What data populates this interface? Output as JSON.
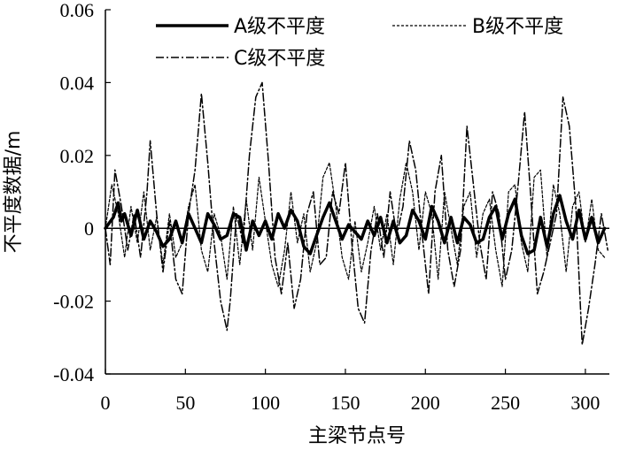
{
  "chart_data": {
    "type": "line",
    "title": "",
    "xlabel": "主梁节点号",
    "ylabel": "不平度数据/m",
    "xlim": [
      0,
      315
    ],
    "ylim": [
      -0.04,
      0.06
    ],
    "xticks": [
      0,
      50,
      100,
      150,
      200,
      250,
      300
    ],
    "yticks": [
      {
        "value": -0.04,
        "label": "-0.04"
      },
      {
        "value": -0.02,
        "label": "-0.02"
      },
      {
        "value": 0,
        "label": "0"
      },
      {
        "value": 0.02,
        "label": "0.02"
      },
      {
        "value": 0.04,
        "label": "0.04"
      },
      {
        "value": 0.06,
        "label": "0.06"
      }
    ],
    "grid": false,
    "legend_position": "top",
    "series": [
      {
        "name": "A级不平度",
        "style": "solid-thick",
        "x": [
          0,
          5,
          8,
          10,
          12,
          16,
          20,
          24,
          28,
          32,
          36,
          40,
          44,
          48,
          52,
          56,
          60,
          64,
          68,
          72,
          76,
          80,
          84,
          88,
          92,
          96,
          100,
          104,
          108,
          112,
          116,
          120,
          124,
          128,
          132,
          136,
          140,
          144,
          148,
          152,
          156,
          160,
          164,
          168,
          172,
          176,
          180,
          184,
          188,
          192,
          196,
          200,
          204,
          208,
          212,
          216,
          220,
          224,
          228,
          232,
          236,
          240,
          244,
          248,
          252,
          256,
          260,
          264,
          268,
          272,
          276,
          280,
          284,
          288,
          292,
          296,
          300,
          304,
          308,
          312
        ],
        "values": [
          0.0,
          0.003,
          0.007,
          0.002,
          0.004,
          -0.002,
          0.005,
          -0.003,
          0.002,
          -0.001,
          -0.005,
          -0.003,
          0.002,
          -0.004,
          0.004,
          0.0,
          -0.004,
          0.004,
          0.001,
          -0.003,
          -0.002,
          0.004,
          0.003,
          -0.006,
          0.002,
          -0.002,
          0.002,
          -0.003,
          0.004,
          0.0,
          0.005,
          0.002,
          -0.005,
          -0.007,
          -0.002,
          0.003,
          0.007,
          0.002,
          -0.003,
          0.001,
          -0.001,
          -0.003,
          0.002,
          -0.002,
          0.003,
          -0.004,
          0.002,
          -0.004,
          -0.002,
          0.005,
          0.002,
          -0.003,
          0.006,
          0.002,
          -0.004,
          0.003,
          -0.004,
          0.003,
          0.001,
          -0.004,
          -0.003,
          0.003,
          0.006,
          -0.003,
          0.004,
          0.008,
          -0.002,
          -0.007,
          -0.006,
          0.003,
          -0.005,
          0.004,
          0.009,
          0.002,
          -0.003,
          0.005,
          -0.003,
          0.003,
          -0.004,
          0.0
        ]
      },
      {
        "name": "B级不平度",
        "style": "dashed",
        "x": [
          0,
          4,
          8,
          12,
          16,
          20,
          24,
          28,
          32,
          36,
          40,
          44,
          48,
          52,
          56,
          60,
          64,
          68,
          72,
          76,
          80,
          84,
          88,
          92,
          96,
          100,
          104,
          108,
          112,
          116,
          120,
          124,
          128,
          132,
          136,
          140,
          144,
          148,
          152,
          156,
          160,
          164,
          168,
          172,
          176,
          180,
          184,
          188,
          192,
          196,
          200,
          204,
          208,
          212,
          216,
          220,
          224,
          228,
          232,
          236,
          240,
          244,
          248,
          252,
          256,
          260,
          264,
          268,
          272,
          276,
          280,
          284,
          288,
          292,
          296,
          300,
          304,
          308,
          312
        ],
        "values": [
          0.0,
          0.012,
          0.004,
          -0.008,
          0.006,
          -0.004,
          0.01,
          -0.006,
          0.003,
          -0.01,
          0.004,
          -0.008,
          -0.004,
          0.006,
          0.012,
          -0.006,
          -0.012,
          0.004,
          -0.002,
          -0.014,
          0.006,
          -0.01,
          0.008,
          -0.006,
          0.014,
          0.002,
          -0.01,
          -0.016,
          -0.006,
          0.01,
          -0.004,
          0.004,
          -0.012,
          -0.004,
          0.014,
          0.018,
          0.006,
          -0.008,
          -0.014,
          0.002,
          -0.012,
          -0.004,
          0.006,
          -0.006,
          0.004,
          -0.01,
          0.008,
          0.018,
          0.01,
          -0.006,
          0.01,
          0.004,
          -0.014,
          0.01,
          0.0,
          -0.01,
          0.006,
          0.01,
          -0.008,
          0.004,
          0.008,
          -0.006,
          -0.016,
          0.01,
          0.012,
          -0.004,
          -0.012,
          0.014,
          0.016,
          -0.008,
          0.012,
          0.004,
          -0.012,
          0.006,
          0.01,
          -0.004,
          0.008,
          -0.006,
          -0.008
        ]
      },
      {
        "name": "C级不平度",
        "style": "dash-dot",
        "x": [
          0,
          3,
          6,
          10,
          14,
          18,
          22,
          26,
          28,
          32,
          36,
          40,
          44,
          48,
          52,
          56,
          60,
          64,
          68,
          72,
          76,
          78,
          82,
          86,
          90,
          94,
          98,
          102,
          106,
          110,
          114,
          118,
          122,
          126,
          130,
          134,
          138,
          142,
          146,
          150,
          154,
          158,
          162,
          166,
          170,
          174,
          178,
          182,
          186,
          190,
          194,
          198,
          202,
          206,
          210,
          214,
          218,
          222,
          226,
          230,
          234,
          238,
          242,
          246,
          250,
          254,
          258,
          262,
          266,
          270,
          274,
          278,
          282,
          286,
          290,
          294,
          298,
          302,
          306,
          310,
          314
        ],
        "values": [
          0.0,
          -0.01,
          0.016,
          0.006,
          -0.006,
          0.004,
          -0.008,
          0.01,
          0.024,
          0.004,
          -0.012,
          0.002,
          -0.014,
          -0.018,
          0.004,
          0.016,
          0.037,
          0.018,
          -0.004,
          -0.02,
          -0.028,
          -0.02,
          0.004,
          -0.004,
          0.02,
          0.036,
          0.04,
          0.018,
          -0.008,
          -0.018,
          -0.004,
          -0.022,
          -0.014,
          0.004,
          0.01,
          -0.01,
          -0.008,
          0.01,
          0.004,
          0.018,
          -0.004,
          -0.022,
          -0.026,
          -0.006,
          0.004,
          -0.008,
          0.01,
          -0.002,
          0.006,
          0.024,
          0.016,
          -0.002,
          -0.018,
          0.01,
          0.02,
          -0.006,
          -0.016,
          -0.006,
          0.028,
          0.012,
          -0.004,
          -0.014,
          0.01,
          0.004,
          -0.014,
          -0.006,
          0.012,
          0.032,
          0.008,
          -0.018,
          -0.012,
          -0.004,
          0.004,
          0.036,
          0.028,
          0.006,
          -0.032,
          -0.022,
          -0.01,
          0.004,
          -0.006
        ]
      }
    ]
  }
}
